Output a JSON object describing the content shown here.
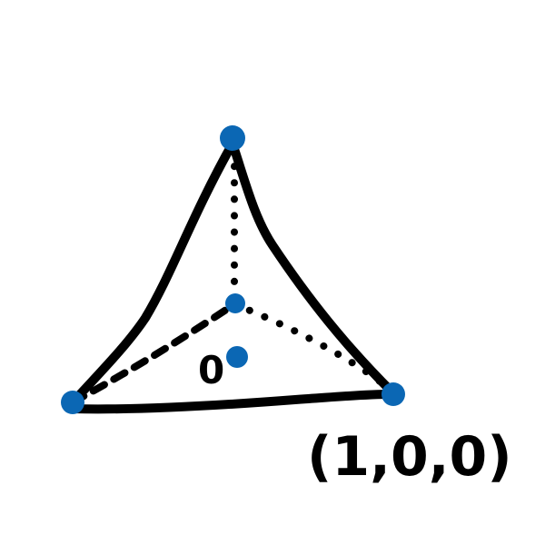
{
  "diagram": {
    "description_labels": {
      "origin": "0",
      "vertex_x": "(1,0,0)"
    },
    "colors": {
      "vertex": "#0B67B4",
      "edge": "#000000",
      "background": "#FFFFFF"
    },
    "vertices": [
      {
        "name": "apex"
      },
      {
        "name": "left"
      },
      {
        "name": "right"
      },
      {
        "name": "back"
      },
      {
        "name": "centroid"
      }
    ]
  }
}
